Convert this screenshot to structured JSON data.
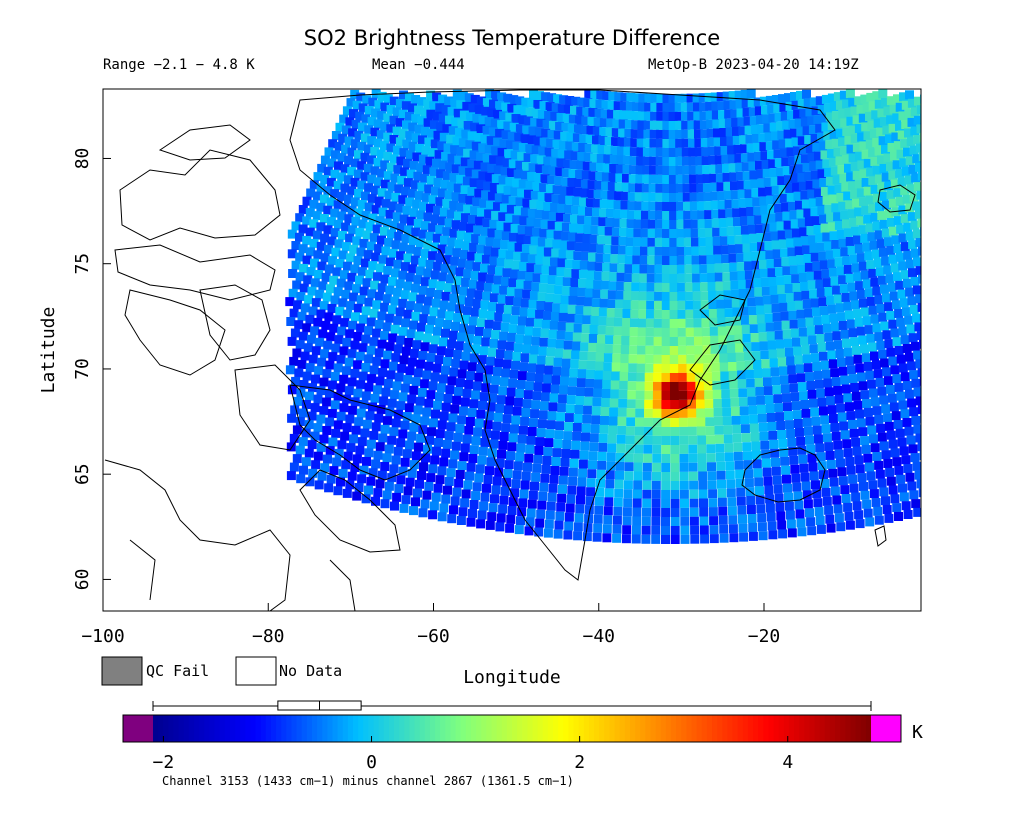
{
  "header": {
    "title": "SO2 Brightness Temperature Difference",
    "range": "Range −2.1 − 4.8 K",
    "mean": "Mean −0.444",
    "satellite_time": "MetOp-B 2023-04-20 14:19Z"
  },
  "legend": {
    "qc_fail_label": "QC Fail",
    "no_data_label": "No Data",
    "qc_fail_color": "#808080",
    "no_data_color": "#ffffff"
  },
  "colorbar": {
    "unit": "K",
    "min": -2.4,
    "max": 4.8,
    "ticks": [
      "−2",
      "0",
      "2",
      "4"
    ],
    "tick_values": [
      -2,
      0,
      2,
      4
    ],
    "underflow_color": "#7f007f",
    "overflow_color": "#ff00ff",
    "boxplot": {
      "whisker_low": -2.1,
      "q1": -0.9,
      "median": -0.5,
      "q3": -0.1,
      "whisker_high": 4.8
    }
  },
  "footer": "Channel 3153 (1433 cm−1) minus channel 2867 (1361.5 cm−1)",
  "chart_data": {
    "type": "heatmap",
    "title": "SO2 Brightness Temperature Difference",
    "xlabel": "Longitude",
    "ylabel": "Latitude",
    "xlim": [
      -100,
      -1
    ],
    "ylim": [
      58.5,
      83.3
    ],
    "xticks": [
      -100,
      -80,
      -60,
      -40,
      -20
    ],
    "xtick_labels": [
      "−100",
      "−80",
      "−60",
      "−40",
      "−20"
    ],
    "yticks": [
      60,
      65,
      70,
      75,
      80
    ],
    "ytick_labels": [
      "60",
      "65",
      "70",
      "75",
      "80"
    ],
    "value_range": [
      -2.1,
      4.8
    ],
    "mean": -0.444,
    "units": "K",
    "plume_peak": {
      "lon": -31,
      "lat": 69,
      "value": 4.5
    },
    "colormap": [
      "#00008f",
      "#0000ff",
      "#00bfff",
      "#7fff7f",
      "#ffff00",
      "#ff8000",
      "#ff0000",
      "#7f0000"
    ]
  }
}
